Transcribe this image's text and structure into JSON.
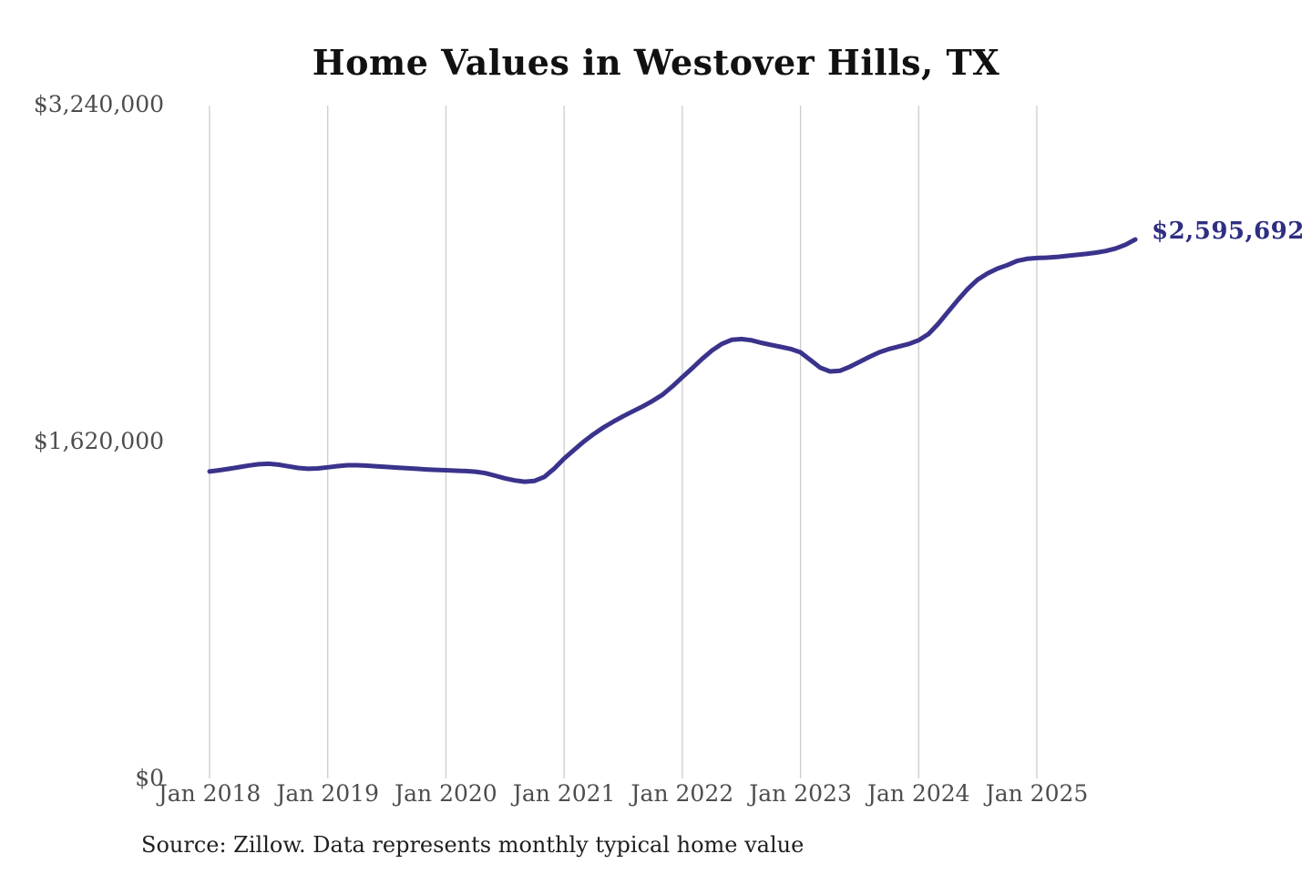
{
  "chart_data": {
    "type": "line",
    "title": "Home Values in Westover Hills, TX",
    "xlabel": "",
    "ylabel": "",
    "ylim": [
      0,
      3240000
    ],
    "grid": "vertical-only",
    "legend": "none",
    "line_color": "#3a338c",
    "grid_color": "#cccccc",
    "label_color": "#2e2e82",
    "y_ticks": [
      {
        "label": "$0",
        "value": 0
      },
      {
        "label": "$1,620,000",
        "value": 1620000
      },
      {
        "label": "$3,240,000",
        "value": 3240000
      }
    ],
    "x_tick_labels": [
      "Jan 2018",
      "Jan 2019",
      "Jan 2020",
      "Jan 2021",
      "Jan 2022",
      "Jan 2023",
      "Jan 2024",
      "Jan 2025"
    ],
    "series": [
      {
        "name": "Monthly typical home value",
        "x_start": "2018-01",
        "x_frequency": "monthly",
        "x_end": "2025-11",
        "values": [
          1478000,
          1484000,
          1491000,
          1499000,
          1507000,
          1513000,
          1515000,
          1511000,
          1503000,
          1495000,
          1491000,
          1493000,
          1498000,
          1504000,
          1508000,
          1508000,
          1506000,
          1503000,
          1500000,
          1497000,
          1494000,
          1491000,
          1488000,
          1486000,
          1484000,
          1482000,
          1480000,
          1477000,
          1470000,
          1458000,
          1445000,
          1435000,
          1429000,
          1433000,
          1452000,
          1492000,
          1540000,
          1582000,
          1622000,
          1658000,
          1690000,
          1718000,
          1744000,
          1768000,
          1792000,
          1818000,
          1848000,
          1888000,
          1932000,
          1975000,
          2020000,
          2060000,
          2092000,
          2112000,
          2116000,
          2110000,
          2098000,
          2088000,
          2078000,
          2068000,
          2052000,
          2015000,
          1978000,
          1960000,
          1963000,
          1982000,
          2006000,
          2030000,
          2052000,
          2068000,
          2080000,
          2092000,
          2110000,
          2140000,
          2190000,
          2248000,
          2305000,
          2358000,
          2402000,
          2432000,
          2455000,
          2472000,
          2492000,
          2502000,
          2506000,
          2508000,
          2511000,
          2516000,
          2521000,
          2526000,
          2532000,
          2540000,
          2552000,
          2570000,
          2595692
        ]
      }
    ],
    "end_label": "$2,595,692",
    "last_value": 2595692,
    "source_note": "Source: Zillow. Data represents monthly typical home value"
  }
}
